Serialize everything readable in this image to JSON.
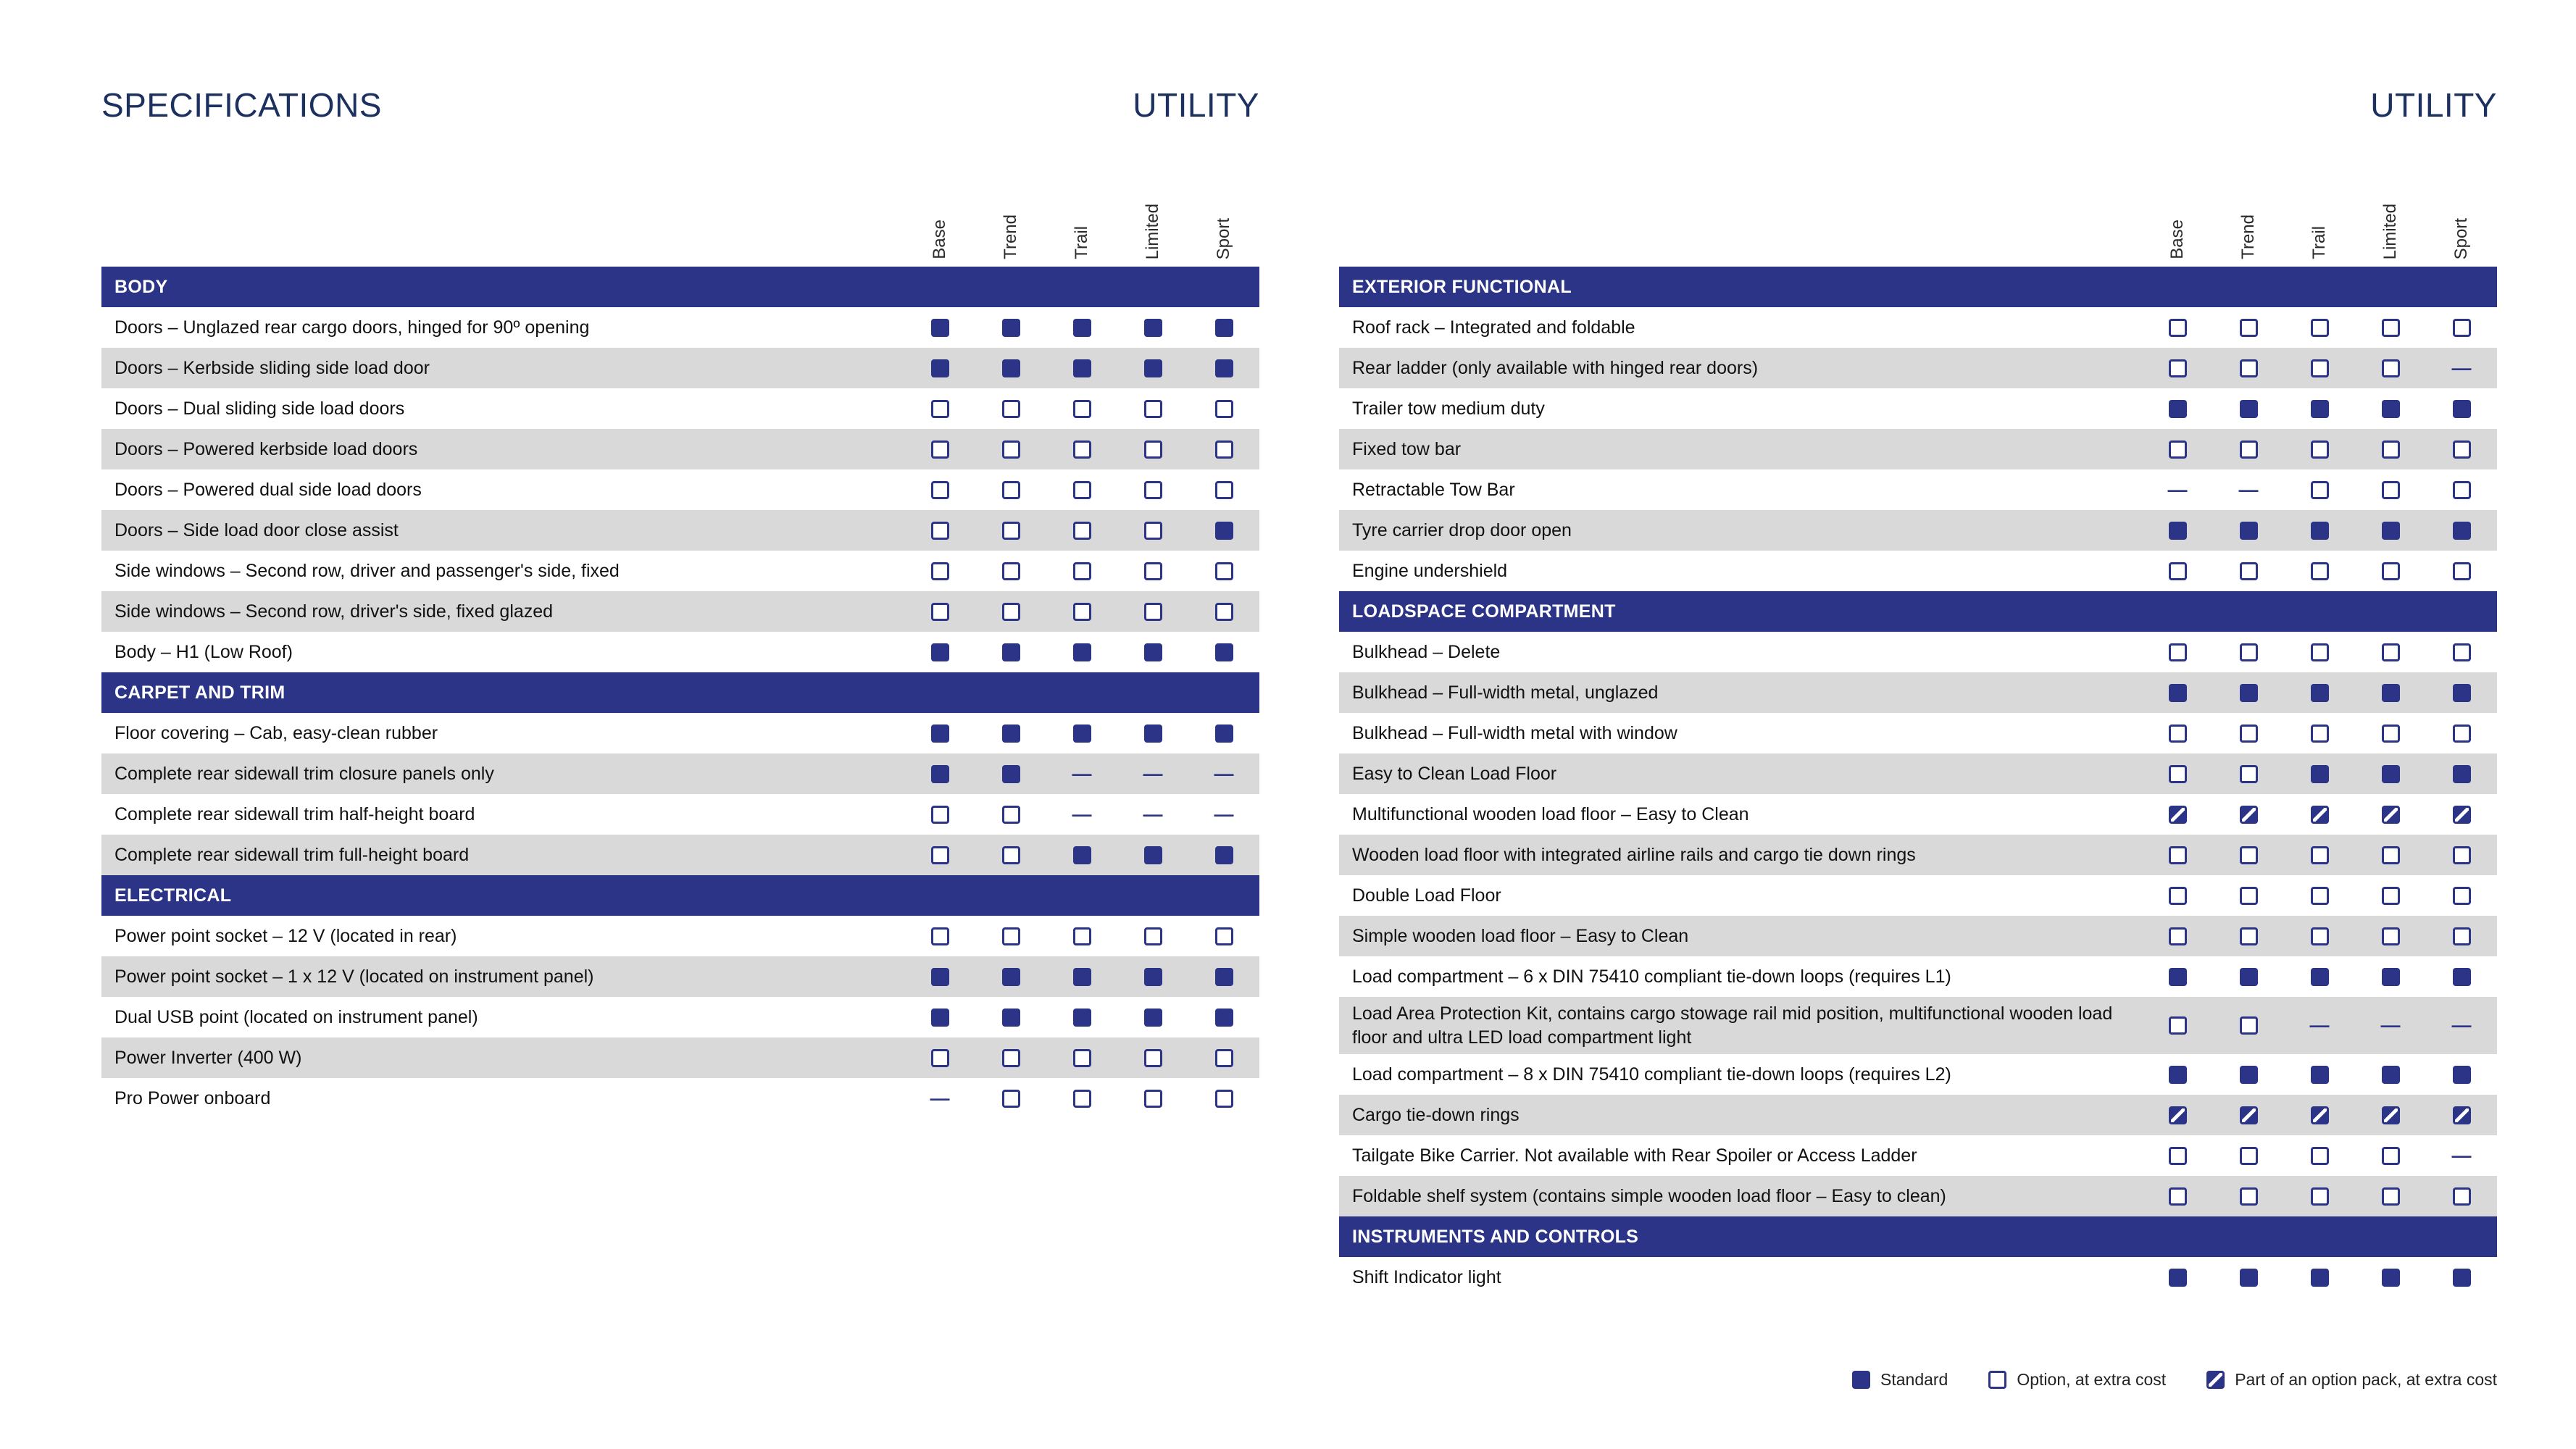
{
  "colors": {
    "navy": "#2b3486",
    "title": "#1d3160",
    "row_alt": "#d9d9d9"
  },
  "columns": [
    "Base",
    "Trend",
    "Trail",
    "Limited",
    "Sport"
  ],
  "marks_key": {
    "s": "standard",
    "o": "option",
    "p": "pack",
    "-": "not-available"
  },
  "legend": [
    {
      "mark": "standard",
      "label": "Standard"
    },
    {
      "mark": "option",
      "label": "Option, at extra cost"
    },
    {
      "mark": "pack",
      "label": "Part of an option pack, at extra cost"
    }
  ],
  "pages": [
    {
      "title": "SPECIFICATIONS",
      "corner": "UTILITY",
      "sections": [
        {
          "title": "BODY",
          "rows": [
            {
              "label": "Doors – Unglazed rear cargo doors, hinged for 90º opening",
              "cells": [
                "s",
                "s",
                "s",
                "s",
                "s"
              ]
            },
            {
              "label": "Doors – Kerbside sliding side load door",
              "cells": [
                "s",
                "s",
                "s",
                "s",
                "s"
              ]
            },
            {
              "label": "Doors – Dual sliding side load doors",
              "cells": [
                "o",
                "o",
                "o",
                "o",
                "o"
              ]
            },
            {
              "label": "Doors – Powered kerbside load doors",
              "cells": [
                "o",
                "o",
                "o",
                "o",
                "o"
              ]
            },
            {
              "label": "Doors – Powered dual side load doors",
              "cells": [
                "o",
                "o",
                "o",
                "o",
                "o"
              ]
            },
            {
              "label": "Doors – Side load door close assist",
              "cells": [
                "o",
                "o",
                "o",
                "o",
                "s"
              ]
            },
            {
              "label": "Side windows – Second row, driver and passenger's side, fixed",
              "cells": [
                "o",
                "o",
                "o",
                "o",
                "o"
              ]
            },
            {
              "label": "Side windows – Second row, driver's side, fixed glazed",
              "cells": [
                "o",
                "o",
                "o",
                "o",
                "o"
              ]
            },
            {
              "label": "Body – H1 (Low Roof)",
              "cells": [
                "s",
                "s",
                "s",
                "s",
                "s"
              ]
            }
          ]
        },
        {
          "title": "CARPET AND TRIM",
          "rows": [
            {
              "label": "Floor covering – Cab, easy-clean rubber",
              "cells": [
                "s",
                "s",
                "s",
                "s",
                "s"
              ]
            },
            {
              "label": "Complete rear sidewall trim closure panels only",
              "cells": [
                "s",
                "s",
                "-",
                "-",
                "-"
              ]
            },
            {
              "label": "Complete rear sidewall trim half-height board",
              "cells": [
                "o",
                "o",
                "-",
                "-",
                "-"
              ]
            },
            {
              "label": "Complete rear sidewall trim full-height board",
              "cells": [
                "o",
                "o",
                "s",
                "s",
                "s"
              ]
            }
          ]
        },
        {
          "title": "ELECTRICAL",
          "rows": [
            {
              "label": "Power point socket – 12 V (located in rear)",
              "cells": [
                "o",
                "o",
                "o",
                "o",
                "o"
              ]
            },
            {
              "label": "Power point socket – 1 x 12 V (located on instrument panel)",
              "cells": [
                "s",
                "s",
                "s",
                "s",
                "s"
              ]
            },
            {
              "label": "Dual USB point (located on instrument panel)",
              "cells": [
                "s",
                "s",
                "s",
                "s",
                "s"
              ]
            },
            {
              "label": "Power Inverter (400 W)",
              "cells": [
                "o",
                "o",
                "o",
                "o",
                "o"
              ]
            },
            {
              "label": "Pro Power onboard",
              "cells": [
                "-",
                "o",
                "o",
                "o",
                "o"
              ]
            }
          ]
        }
      ]
    },
    {
      "title": "",
      "corner": "UTILITY",
      "sections": [
        {
          "title": "EXTERIOR FUNCTIONAL",
          "rows": [
            {
              "label": "Roof rack – Integrated and foldable",
              "cells": [
                "o",
                "o",
                "o",
                "o",
                "o"
              ]
            },
            {
              "label": "Rear ladder (only available with hinged rear doors)",
              "cells": [
                "o",
                "o",
                "o",
                "o",
                "-"
              ]
            },
            {
              "label": "Trailer tow medium duty",
              "cells": [
                "s",
                "s",
                "s",
                "s",
                "s"
              ]
            },
            {
              "label": "Fixed tow bar",
              "cells": [
                "o",
                "o",
                "o",
                "o",
                "o"
              ]
            },
            {
              "label": "Retractable Tow Bar",
              "cells": [
                "-",
                "-",
                "o",
                "o",
                "o"
              ]
            },
            {
              "label": "Tyre carrier drop door open",
              "cells": [
                "s",
                "s",
                "s",
                "s",
                "s"
              ]
            },
            {
              "label": "Engine undershield",
              "cells": [
                "o",
                "o",
                "o",
                "o",
                "o"
              ]
            }
          ]
        },
        {
          "title": "LOADSPACE COMPARTMENT",
          "rows": [
            {
              "label": "Bulkhead – Delete",
              "cells": [
                "o",
                "o",
                "o",
                "o",
                "o"
              ]
            },
            {
              "label": "Bulkhead – Full-width metal, unglazed",
              "cells": [
                "s",
                "s",
                "s",
                "s",
                "s"
              ]
            },
            {
              "label": "Bulkhead – Full-width metal with window",
              "cells": [
                "o",
                "o",
                "o",
                "o",
                "o"
              ]
            },
            {
              "label": "Easy to Clean Load Floor",
              "cells": [
                "o",
                "o",
                "s",
                "s",
                "s"
              ]
            },
            {
              "label": "Multifunctional wooden load floor – Easy to Clean",
              "cells": [
                "p",
                "p",
                "p",
                "p",
                "p"
              ]
            },
            {
              "label": "Wooden load floor with integrated airline rails and cargo tie down rings",
              "cells": [
                "o",
                "o",
                "o",
                "o",
                "o"
              ]
            },
            {
              "label": "Double Load Floor",
              "cells": [
                "o",
                "o",
                "o",
                "o",
                "o"
              ]
            },
            {
              "label": "Simple wooden load floor – Easy to Clean",
              "cells": [
                "o",
                "o",
                "o",
                "o",
                "o"
              ]
            },
            {
              "label": "Load compartment – 6 x DIN 75410 compliant tie-down loops (requires L1)",
              "cells": [
                "s",
                "s",
                "s",
                "s",
                "s"
              ]
            },
            {
              "label": "Load Area Protection Kit, contains cargo stowage rail mid position, multifunctional wooden load floor and ultra LED load compartment light",
              "cells": [
                "o",
                "o",
                "-",
                "-",
                "-"
              ]
            },
            {
              "label": "Load compartment – 8 x DIN 75410 compliant tie-down loops (requires L2)",
              "cells": [
                "s",
                "s",
                "s",
                "s",
                "s"
              ]
            },
            {
              "label": "Cargo tie-down rings",
              "cells": [
                "p",
                "p",
                "p",
                "p",
                "p"
              ]
            },
            {
              "label": "Tailgate Bike Carrier. Not available with Rear Spoiler or Access Ladder",
              "cells": [
                "o",
                "o",
                "o",
                "o",
                "-"
              ]
            },
            {
              "label": "Foldable shelf system (contains simple wooden load floor – Easy to clean)",
              "cells": [
                "o",
                "o",
                "o",
                "o",
                "o"
              ]
            }
          ]
        },
        {
          "title": "INSTRUMENTS AND CONTROLS",
          "rows": [
            {
              "label": "Shift Indicator light",
              "cells": [
                "s",
                "s",
                "s",
                "s",
                "s"
              ]
            }
          ]
        }
      ]
    }
  ]
}
